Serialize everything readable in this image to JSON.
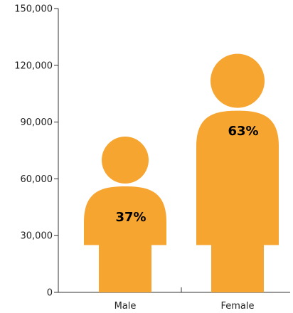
{
  "chart_data": {
    "type": "bar",
    "style": "pictogram-person",
    "categories": [
      "Male",
      "Female"
    ],
    "values": [
      56000,
      96000
    ],
    "percent_labels": [
      "37%",
      "63%"
    ],
    "title": "",
    "xlabel": "",
    "ylabel": "",
    "ylim": [
      0,
      150000
    ],
    "y_ticks": [
      {
        "value": 0,
        "label": "0"
      },
      {
        "value": 30000,
        "label": "30,000"
      },
      {
        "value": 60000,
        "label": "60,000"
      },
      {
        "value": 90000,
        "label": "90,000"
      },
      {
        "value": 120000,
        "label": "120,000"
      },
      {
        "value": 150000,
        "label": "150,000"
      }
    ],
    "grid": false,
    "legend": "none",
    "colors": {
      "figure": "#F6A531",
      "axis": "#333333",
      "text": "#222222"
    }
  }
}
